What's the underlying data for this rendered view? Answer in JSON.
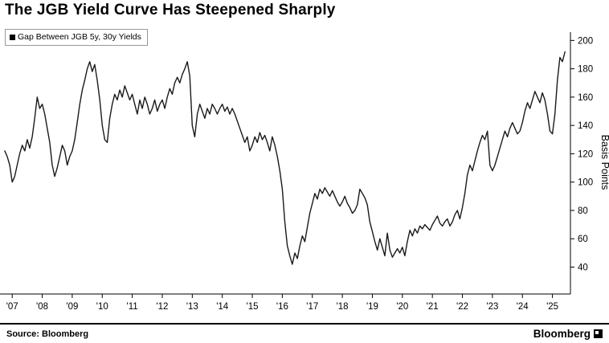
{
  "title": "The JGB Yield Curve Has Steepened Sharply",
  "legend": {
    "label": "Gap Between JGB 5y, 30y Yields"
  },
  "source": "Source: Bloomberg",
  "brand": "Bloomberg",
  "colors": {
    "line": "#1a1a1a",
    "axis": "#000000",
    "legend_border": "#999999"
  },
  "chart_data": {
    "type": "line",
    "title": "The JGB Yield Curve Has Steepened Sharply",
    "series_name": "Gap Between JGB 5y, 30y Yields",
    "xlabel": "",
    "ylabel": "Basis Points",
    "legend_position": "top-left",
    "grid": false,
    "y_ticks": [
      200,
      180,
      160,
      140,
      120,
      100,
      80,
      60,
      40
    ],
    "y_domain": [
      21,
      207
    ],
    "x_domain": [
      2006.7,
      2025.6
    ],
    "x_tick_years": [
      2007,
      2008,
      2009,
      2010,
      2011,
      2012,
      2013,
      2014,
      2015,
      2016,
      2017,
      2018,
      2019,
      2020,
      2021,
      2022,
      2023,
      2024,
      2025
    ],
    "x_tick_labels": [
      "'07",
      "'08",
      "'09",
      "'10",
      "'11",
      "'12",
      "'13",
      "'14",
      "'15",
      "'16",
      "'17",
      "'18",
      "'19",
      "'20",
      "'21",
      "'22",
      "'23",
      "'24",
      "'25"
    ],
    "x_start": 2006.75,
    "x_step": 0.0833333,
    "values": [
      122,
      118,
      112,
      100,
      104,
      112,
      120,
      126,
      122,
      130,
      124,
      132,
      145,
      160,
      152,
      155,
      148,
      138,
      128,
      112,
      104,
      110,
      118,
      126,
      122,
      112,
      118,
      122,
      130,
      142,
      155,
      165,
      172,
      180,
      185,
      178,
      183,
      172,
      158,
      140,
      130,
      128,
      145,
      155,
      162,
      158,
      165,
      160,
      168,
      163,
      158,
      162,
      155,
      148,
      158,
      152,
      160,
      155,
      148,
      152,
      158,
      150,
      155,
      158,
      152,
      160,
      166,
      162,
      170,
      174,
      170,
      176,
      180,
      185,
      175,
      140,
      132,
      148,
      155,
      150,
      145,
      152,
      148,
      155,
      152,
      148,
      152,
      155,
      150,
      153,
      148,
      152,
      148,
      143,
      138,
      133,
      128,
      132,
      122,
      126,
      132,
      128,
      135,
      130,
      133,
      128,
      122,
      132,
      126,
      118,
      108,
      95,
      72,
      55,
      48,
      42,
      50,
      46,
      55,
      62,
      58,
      68,
      78,
      85,
      92,
      88,
      95,
      92,
      96,
      93,
      90,
      94,
      90,
      86,
      83,
      86,
      90,
      85,
      82,
      78,
      80,
      84,
      95,
      92,
      89,
      84,
      72,
      65,
      58,
      52,
      60,
      54,
      48,
      64,
      52,
      47,
      50,
      53,
      50,
      54,
      48,
      58,
      66,
      62,
      67,
      64,
      69,
      67,
      70,
      68,
      66,
      70,
      73,
      76,
      71,
      69,
      72,
      74,
      69,
      72,
      77,
      80,
      74,
      82,
      92,
      105,
      112,
      108,
      115,
      122,
      128,
      133,
      130,
      136,
      112,
      108,
      112,
      118,
      124,
      130,
      136,
      132,
      138,
      142,
      138,
      134,
      136,
      142,
      150,
      156,
      152,
      158,
      164,
      160,
      156,
      163,
      158,
      148,
      136,
      134,
      148,
      172,
      188,
      185,
      192
    ]
  }
}
